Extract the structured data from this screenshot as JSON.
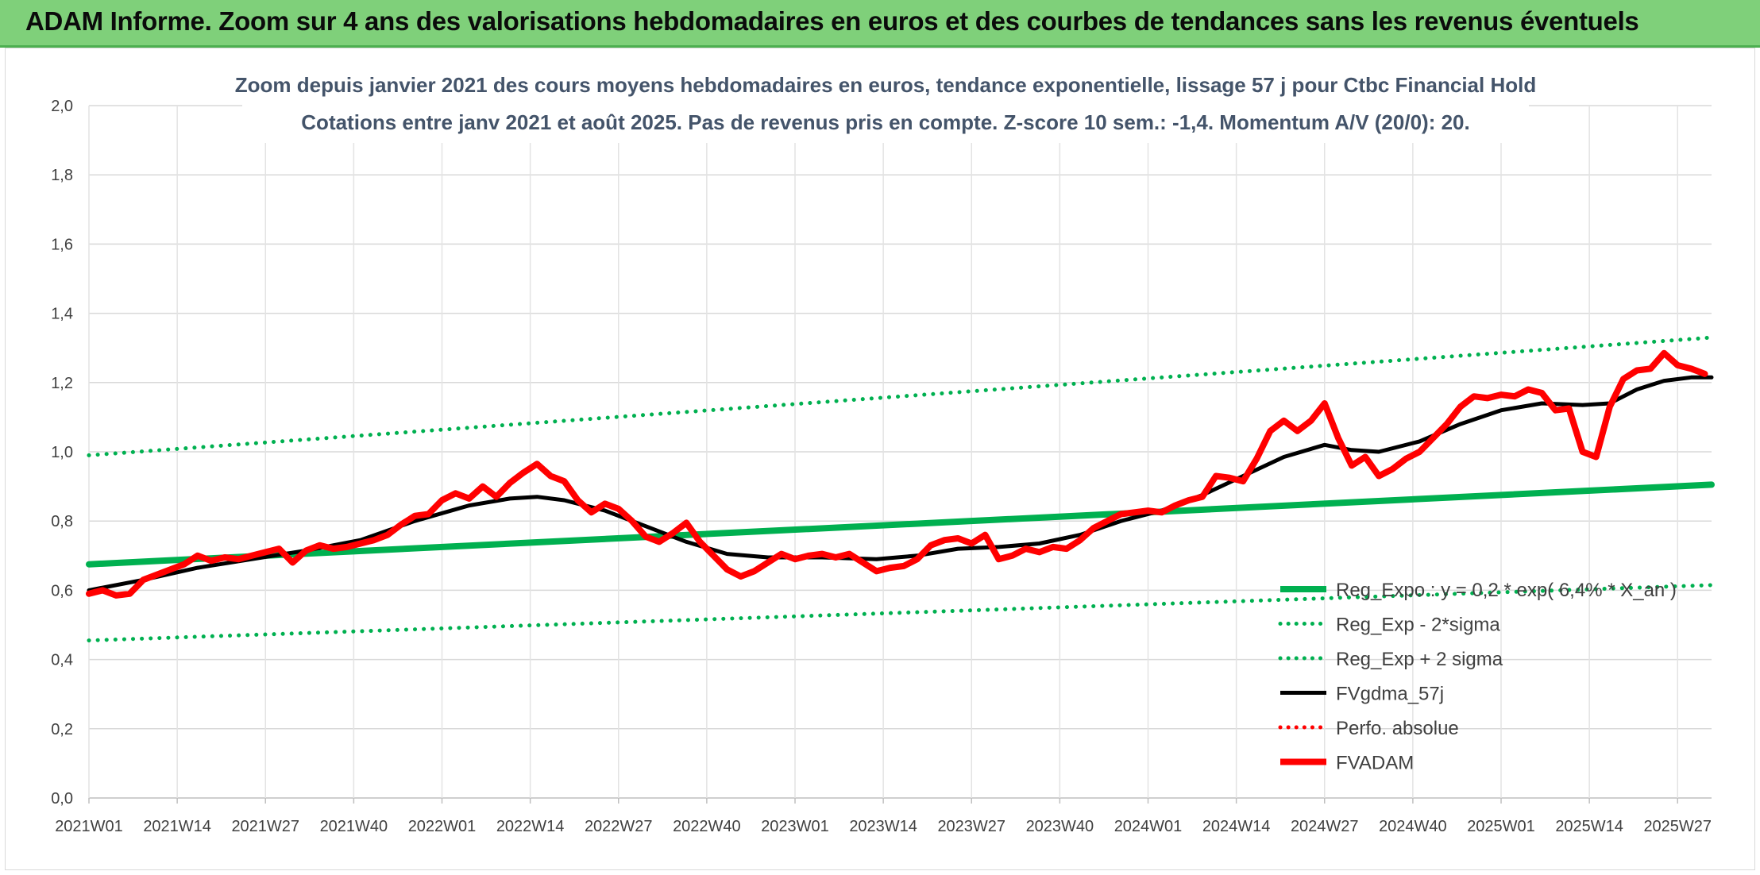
{
  "banner": {
    "title": "ADAM Informe. Zoom sur 4 ans des valorisations hebdomadaires en euros et des courbes de tendances sans les revenus éventuels"
  },
  "chart_data": {
    "type": "line",
    "title_line1": "Zoom depuis janvier 2021 des cours moyens hebdomadaires en euros, tendance exponentielle, lissage 57 j pour Ctbc Financial Hold",
    "title_line2": "Cotations entre janv 2021 et août 2025. Pas de revenus pris en compte. Z-score 10 sem.: -1,4. Momentum A/V (20/0): 20.",
    "xlabel": "",
    "ylabel": "",
    "ylim": [
      0,
      2
    ],
    "xlim": [
      0,
      239
    ],
    "grid": true,
    "y_ticks": [
      "0,0",
      "0,2",
      "0,4",
      "0,6",
      "0,8",
      "1,0",
      "1,2",
      "1,4",
      "1,6",
      "1,8",
      "2,0"
    ],
    "x_ticks": [
      {
        "i": 0,
        "label": "2021W01"
      },
      {
        "i": 13,
        "label": "2021W14"
      },
      {
        "i": 26,
        "label": "2021W27"
      },
      {
        "i": 39,
        "label": "2021W40"
      },
      {
        "i": 52,
        "label": "2022W01"
      },
      {
        "i": 65,
        "label": "2022W14"
      },
      {
        "i": 78,
        "label": "2022W27"
      },
      {
        "i": 91,
        "label": "2022W40"
      },
      {
        "i": 104,
        "label": "2023W01"
      },
      {
        "i": 117,
        "label": "2023W14"
      },
      {
        "i": 130,
        "label": "2023W27"
      },
      {
        "i": 143,
        "label": "2023W40"
      },
      {
        "i": 156,
        "label": "2024W01"
      },
      {
        "i": 169,
        "label": "2024W14"
      },
      {
        "i": 182,
        "label": "2024W27"
      },
      {
        "i": 195,
        "label": "2024W40"
      },
      {
        "i": 208,
        "label": "2025W01"
      },
      {
        "i": 221,
        "label": "2025W14"
      },
      {
        "i": 234,
        "label": "2025W27"
      }
    ],
    "legend_position": "right",
    "series": [
      {
        "name": "Reg_Expo : y = 0,2 * exp( 6,4% * X_an )",
        "color": "#00b050",
        "style": "solid",
        "width": 8,
        "points": [
          [
            0,
            0.675
          ],
          [
            239,
            0.905
          ]
        ]
      },
      {
        "name": "Reg_Exp - 2*sigma",
        "color": "#00b050",
        "style": "dotted",
        "width": 5,
        "points": [
          [
            0,
            0.455
          ],
          [
            239,
            0.615
          ]
        ]
      },
      {
        "name": "Reg_Exp + 2 sigma",
        "color": "#00b050",
        "style": "dotted",
        "width": 5,
        "points": [
          [
            0,
            0.99
          ],
          [
            239,
            1.33
          ]
        ]
      },
      {
        "name": "FVgdma_57j",
        "color": "#000000",
        "style": "solid",
        "width": 5,
        "points": [
          [
            0,
            0.6
          ],
          [
            8,
            0.63
          ],
          [
            16,
            0.665
          ],
          [
            24,
            0.69
          ],
          [
            32,
            0.715
          ],
          [
            40,
            0.745
          ],
          [
            48,
            0.8
          ],
          [
            56,
            0.845
          ],
          [
            62,
            0.865
          ],
          [
            66,
            0.87
          ],
          [
            70,
            0.86
          ],
          [
            76,
            0.83
          ],
          [
            82,
            0.785
          ],
          [
            88,
            0.74
          ],
          [
            94,
            0.705
          ],
          [
            100,
            0.695
          ],
          [
            108,
            0.695
          ],
          [
            116,
            0.69
          ],
          [
            122,
            0.7
          ],
          [
            128,
            0.72
          ],
          [
            134,
            0.725
          ],
          [
            140,
            0.735
          ],
          [
            146,
            0.76
          ],
          [
            152,
            0.8
          ],
          [
            158,
            0.83
          ],
          [
            164,
            0.875
          ],
          [
            170,
            0.93
          ],
          [
            176,
            0.985
          ],
          [
            182,
            1.02
          ],
          [
            186,
            1.005
          ],
          [
            190,
            1.0
          ],
          [
            196,
            1.03
          ],
          [
            202,
            1.08
          ],
          [
            208,
            1.12
          ],
          [
            214,
            1.14
          ],
          [
            220,
            1.135
          ],
          [
            224,
            1.14
          ],
          [
            228,
            1.18
          ],
          [
            232,
            1.205
          ],
          [
            236,
            1.215
          ],
          [
            239,
            1.215
          ]
        ]
      },
      {
        "name": "Perfo. absolue",
        "color": "#ff0000",
        "style": "dotted",
        "width": 5,
        "points": []
      },
      {
        "name": "FVADAM",
        "color": "#ff0000",
        "style": "solid",
        "width": 8,
        "points": [
          [
            0,
            0.59
          ],
          [
            2,
            0.6
          ],
          [
            4,
            0.585
          ],
          [
            6,
            0.59
          ],
          [
            8,
            0.63
          ],
          [
            10,
            0.645
          ],
          [
            12,
            0.66
          ],
          [
            14,
            0.675
          ],
          [
            16,
            0.7
          ],
          [
            18,
            0.685
          ],
          [
            20,
            0.695
          ],
          [
            22,
            0.69
          ],
          [
            24,
            0.7
          ],
          [
            26,
            0.71
          ],
          [
            28,
            0.72
          ],
          [
            30,
            0.68
          ],
          [
            32,
            0.715
          ],
          [
            34,
            0.73
          ],
          [
            36,
            0.72
          ],
          [
            38,
            0.725
          ],
          [
            40,
            0.735
          ],
          [
            42,
            0.745
          ],
          [
            44,
            0.76
          ],
          [
            46,
            0.79
          ],
          [
            48,
            0.815
          ],
          [
            50,
            0.82
          ],
          [
            52,
            0.86
          ],
          [
            54,
            0.88
          ],
          [
            56,
            0.865
          ],
          [
            58,
            0.9
          ],
          [
            60,
            0.87
          ],
          [
            62,
            0.91
          ],
          [
            64,
            0.94
          ],
          [
            66,
            0.965
          ],
          [
            68,
            0.93
          ],
          [
            70,
            0.915
          ],
          [
            72,
            0.86
          ],
          [
            74,
            0.825
          ],
          [
            76,
            0.85
          ],
          [
            78,
            0.835
          ],
          [
            80,
            0.8
          ],
          [
            82,
            0.755
          ],
          [
            84,
            0.74
          ],
          [
            86,
            0.765
          ],
          [
            88,
            0.795
          ],
          [
            90,
            0.74
          ],
          [
            92,
            0.7
          ],
          [
            94,
            0.66
          ],
          [
            96,
            0.64
          ],
          [
            98,
            0.655
          ],
          [
            100,
            0.68
          ],
          [
            102,
            0.705
          ],
          [
            104,
            0.69
          ],
          [
            106,
            0.7
          ],
          [
            108,
            0.705
          ],
          [
            110,
            0.695
          ],
          [
            112,
            0.705
          ],
          [
            114,
            0.68
          ],
          [
            116,
            0.655
          ],
          [
            118,
            0.665
          ],
          [
            120,
            0.67
          ],
          [
            122,
            0.69
          ],
          [
            124,
            0.73
          ],
          [
            126,
            0.745
          ],
          [
            128,
            0.75
          ],
          [
            130,
            0.735
          ],
          [
            132,
            0.76
          ],
          [
            134,
            0.69
          ],
          [
            136,
            0.7
          ],
          [
            138,
            0.72
          ],
          [
            140,
            0.71
          ],
          [
            142,
            0.725
          ],
          [
            144,
            0.72
          ],
          [
            146,
            0.745
          ],
          [
            148,
            0.78
          ],
          [
            150,
            0.8
          ],
          [
            152,
            0.82
          ],
          [
            154,
            0.825
          ],
          [
            156,
            0.83
          ],
          [
            158,
            0.825
          ],
          [
            160,
            0.845
          ],
          [
            162,
            0.86
          ],
          [
            164,
            0.87
          ],
          [
            166,
            0.93
          ],
          [
            168,
            0.925
          ],
          [
            170,
            0.915
          ],
          [
            172,
            0.98
          ],
          [
            174,
            1.06
          ],
          [
            176,
            1.09
          ],
          [
            178,
            1.06
          ],
          [
            180,
            1.09
          ],
          [
            182,
            1.14
          ],
          [
            184,
            1.04
          ],
          [
            186,
            0.96
          ],
          [
            188,
            0.985
          ],
          [
            190,
            0.93
          ],
          [
            192,
            0.95
          ],
          [
            194,
            0.98
          ],
          [
            196,
            1.0
          ],
          [
            198,
            1.04
          ],
          [
            200,
            1.08
          ],
          [
            202,
            1.13
          ],
          [
            204,
            1.16
          ],
          [
            206,
            1.155
          ],
          [
            208,
            1.165
          ],
          [
            210,
            1.16
          ],
          [
            212,
            1.18
          ],
          [
            214,
            1.17
          ],
          [
            216,
            1.12
          ],
          [
            218,
            1.125
          ],
          [
            220,
            1.0
          ],
          [
            222,
            0.985
          ],
          [
            224,
            1.13
          ],
          [
            226,
            1.21
          ],
          [
            228,
            1.235
          ],
          [
            230,
            1.24
          ],
          [
            232,
            1.285
          ],
          [
            234,
            1.25
          ],
          [
            236,
            1.24
          ],
          [
            238,
            1.225
          ]
        ]
      }
    ]
  }
}
